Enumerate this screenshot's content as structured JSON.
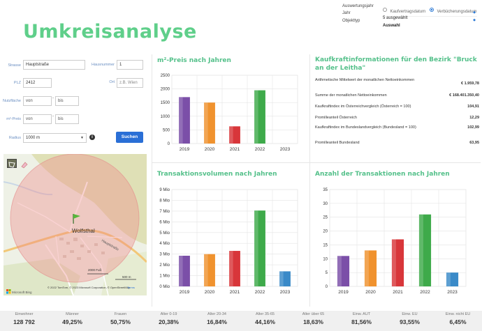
{
  "header": {
    "title": "Umkreisanalyse",
    "auswertungsjahr_label": "Auswertungsjahr",
    "option_kaufvertragsdatum": "Kaufvertragsdatum",
    "option_verbuecherungsdatum": "Verbücherungsdatum",
    "jahr_label": "Jahr",
    "jahr_value": "5 ausgewählt",
    "objekttyp_label": "Objekttyp",
    "objekttyp_value": "Auswahl"
  },
  "form": {
    "strasse_label": "Strasse",
    "strasse_value": "Hauptstraße",
    "hausnummer_label": "Hausnummer",
    "hausnummer_value": "1",
    "plz_label": "PLZ",
    "plz_value": "2412",
    "ort_label": "Ort",
    "ort_placeholder": "z.B. Wien",
    "nutzflaeche_label": "Nutzfläche",
    "von_placeholder": "von",
    "bis_placeholder": "bis",
    "m2preis_label": "m²-Preis",
    "radius_label": "Radius",
    "radius_value": "1000 m",
    "search_button": "Suchen"
  },
  "map": {
    "place_label": "Wolfsthal",
    "street_label": "Hauptstraße",
    "scale_ft": "2000 Fuß",
    "scale_m": "500 m",
    "attribution": "© 2022 TomTom, © 2023 Microsoft Corporation, © OpenStreetMap",
    "terms": "Terms",
    "brand": "Microsoft Bing"
  },
  "kaufkraft": {
    "title": "Kaufkraftinformationen für den Bezirk \"Bruck an der Leitha\"",
    "rows": [
      {
        "label": "Arithmetische Mittelwert der monatlichen Nettoeinkommen",
        "value": "€ 1.959,78"
      },
      {
        "label": "Summe der monatlichen Nettoeinkommen",
        "value": "€ 168.401.350,40"
      },
      {
        "label": "Kaufkraftindex im Österreichvergleich (Österreich = 100)",
        "value": "104,91"
      },
      {
        "label": "Promilleanteil Österreich",
        "value": "12,29"
      },
      {
        "label": "Kaufkraftindex im Bundeslandvergleich (Bundesland = 100)",
        "value": "102,99"
      },
      {
        "label": "Promilleanteil Bundesland",
        "value": "63,95"
      }
    ]
  },
  "stats": [
    {
      "label": "Einwohner",
      "value": "128 792"
    },
    {
      "label": "Männer",
      "value": "49,25%"
    },
    {
      "label": "Frauen",
      "value": "50,75%"
    },
    {
      "label": "Alter 0-19",
      "value": "20,38%"
    },
    {
      "label": "Alter 20-34",
      "value": "16,84%"
    },
    {
      "label": "Alter 35-65",
      "value": "44,16%"
    },
    {
      "label": "Alter über 65",
      "value": "18,63%"
    },
    {
      "label": "Einw. AUT",
      "value": "81,56%"
    },
    {
      "label": "Einw. EU",
      "value": "93,55%"
    },
    {
      "label": "Einw. nicht EU",
      "value": "6,45%"
    }
  ],
  "colors": {
    "accent_green": "#5fcf8a",
    "bar_colors": [
      "#7b4fa8",
      "#f0922e",
      "#d8363a",
      "#3eaa4a",
      "#3a8ac8"
    ]
  },
  "chart_data": [
    {
      "type": "bar",
      "title": "m²-Preis nach Jahren",
      "categories": [
        "2019",
        "2020",
        "2021",
        "2022",
        "2023"
      ],
      "values": [
        1700,
        1500,
        630,
        1950,
        0
      ],
      "ylim": [
        0,
        2500
      ],
      "yticks": [
        "0",
        "500",
        "1000",
        "1500",
        "2000",
        "2500"
      ],
      "grid": true
    },
    {
      "type": "bar",
      "title": "Transaktionsvolumen nach Jahren",
      "categories": [
        "2019",
        "2020",
        "2021",
        "2022",
        "2023"
      ],
      "values": [
        2.85,
        3.0,
        3.3,
        7.05,
        1.4
      ],
      "ylim": [
        0,
        9
      ],
      "yticks": [
        "0 Mio",
        "1 Mio",
        "2 Mio",
        "3 Mio",
        "4 Mio",
        "5 Mio",
        "6 Mio",
        "7 Mio",
        "8 Mio",
        "9 Mio"
      ],
      "grid": true
    },
    {
      "type": "bar",
      "title": "Anzahl der Transaktionen nach Jahren",
      "categories": [
        "2019",
        "2020",
        "2021",
        "2022",
        "2023"
      ],
      "values": [
        11,
        13,
        17,
        26,
        5
      ],
      "ylim": [
        0,
        35
      ],
      "yticks": [
        "0",
        "5",
        "10",
        "15",
        "20",
        "25",
        "30",
        "35"
      ],
      "grid": true
    }
  ]
}
